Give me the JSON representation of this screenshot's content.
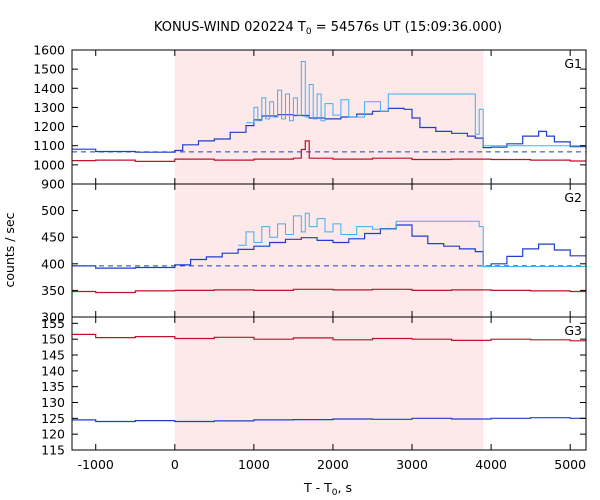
{
  "chart_data": {
    "type": "line",
    "title": "KONUS-WIND 020224 T",
    "title_sub": "0",
    "title_rest": " = 54576s UT (15:09:36.000)",
    "xlabel": "T - T",
    "xlabel_sub": "0",
    "xlabel_rest": ", s",
    "ylabel": "counts / sec",
    "xlim": [
      -1300,
      5200
    ],
    "xticks": [
      -1000,
      0,
      1000,
      2000,
      3000,
      4000,
      5000
    ],
    "xtick_labels": [
      "-1000",
      "0",
      "1000",
      "2000",
      "3000",
      "4000",
      "5000"
    ],
    "shaded_interval": [
      0,
      3900
    ],
    "shaded_color": "#fde8ea",
    "colors": {
      "total": "#1f3fc8",
      "hires": "#3fb0f0",
      "hard": "#c0102a",
      "bg": "#1f3fc8"
    },
    "panels": [
      {
        "label": "G1",
        "ylim": [
          900,
          1600
        ],
        "yticks": [
          900,
          1000,
          1100,
          1200,
          1300,
          1400,
          1500,
          1600
        ],
        "ytick_labels": [
          "900",
          "1000",
          "1100",
          "1200",
          "1300",
          "1400",
          "1500",
          "1600"
        ],
        "background_level": 1068,
        "series": [
          {
            "role": "total",
            "x": [
              -1300,
              -1000,
              -500,
              0,
              100,
              300,
              500,
              700,
              900,
              1000,
              1100,
              1300,
              1500,
              1700,
              1900,
              2100,
              2300,
              2500,
              2700,
              2900,
              3000,
              3100,
              3300,
              3500,
              3700,
              3800,
              3900,
              4000,
              4200,
              4400,
              4600,
              4700,
              4800,
              5000,
              5200
            ],
            "y": [
              1082,
              1070,
              1066,
              1075,
              1105,
              1125,
              1135,
              1170,
              1205,
              1235,
              1255,
              1262,
              1258,
              1245,
              1240,
              1250,
              1265,
              1280,
              1295,
              1290,
              1245,
              1195,
              1175,
              1165,
              1150,
              1140,
              1090,
              1092,
              1110,
              1150,
              1175,
              1150,
              1120,
              1095,
              1090
            ]
          },
          {
            "role": "hires",
            "x": [
              900,
              1000,
              1050,
              1100,
              1150,
              1200,
              1250,
              1300,
              1350,
              1400,
              1450,
              1500,
              1550,
              1600,
              1650,
              1700,
              1750,
              1800,
              1850,
              1900,
              2000,
              2100,
              2200,
              2400,
              2600,
              2700,
              3800,
              3850,
              3900
            ],
            "y": [
              1220,
              1300,
              1230,
              1350,
              1240,
              1330,
              1250,
              1390,
              1240,
              1370,
              1230,
              1350,
              1260,
              1540,
              1250,
              1420,
              1240,
              1370,
              1230,
              1320,
              1260,
              1340,
              1250,
              1330,
              1280,
              1370,
              1160,
              1290,
              1100
            ]
          },
          {
            "role": "hard",
            "x": [
              -1300,
              -1000,
              -500,
              0,
              500,
              1000,
              1500,
              1600,
              1650,
              1700,
              2000,
              2500,
              3000,
              3500,
              4000,
              4500,
              5000,
              5200
            ],
            "y": [
              1022,
              1025,
              1018,
              1030,
              1025,
              1030,
              1035,
              1080,
              1125,
              1035,
              1030,
              1035,
              1028,
              1030,
              1028,
              1025,
              1020,
              1018
            ]
          }
        ]
      },
      {
        "label": "G2",
        "ylim": [
          300,
          550
        ],
        "yticks": [
          300,
          350,
          400,
          450,
          500
        ],
        "ytick_labels": [
          "300",
          "350",
          "400",
          "450",
          "500"
        ],
        "background_level": 396,
        "series": [
          {
            "role": "total",
            "x": [
              -1300,
              -1000,
              -500,
              0,
              200,
              400,
              600,
              800,
              1000,
              1200,
              1400,
              1600,
              1800,
              2000,
              2200,
              2400,
              2600,
              2800,
              3000,
              3200,
              3400,
              3600,
              3800,
              3900,
              4000,
              4200,
              4400,
              4600,
              4800,
              5000,
              5200
            ],
            "y": [
              396,
              392,
              393,
              398,
              408,
              413,
              420,
              427,
              433,
              440,
              446,
              449,
              444,
              440,
              447,
              457,
              466,
              473,
              452,
              438,
              433,
              428,
              423,
              395,
              400,
              414,
              428,
              437,
              426,
              415,
              412
            ]
          },
          {
            "role": "hires",
            "x": [
              800,
              900,
              1000,
              1100,
              1200,
              1300,
              1400,
              1500,
              1600,
              1650,
              1700,
              1800,
              1900,
              2000,
              2100,
              2300,
              2500,
              2800,
              3850,
              3900
            ],
            "y": [
              435,
              460,
              440,
              470,
              450,
              475,
              455,
              490,
              460,
              495,
              470,
              485,
              460,
              475,
              455,
              470,
              465,
              480,
              470,
              395
            ]
          },
          {
            "role": "hard",
            "x": [
              -1300,
              -1000,
              -500,
              0,
              500,
              1000,
              1500,
              2000,
              2500,
              3000,
              3500,
              4000,
              4500,
              5000,
              5200
            ],
            "y": [
              348,
              346,
              349,
              350,
              351,
              350,
              352,
              351,
              352,
              350,
              351,
              350,
              349,
              348,
              348
            ]
          }
        ]
      },
      {
        "label": "G3",
        "ylim": [
          115,
          157
        ],
        "yticks": [
          115,
          120,
          125,
          130,
          135,
          140,
          145,
          150,
          155
        ],
        "ytick_labels": [
          "115",
          "120",
          "125",
          "130",
          "135",
          "140",
          "145",
          "150",
          "155"
        ],
        "series": [
          {
            "role": "hard",
            "x": [
              -1300,
              -1000,
              -500,
              0,
              500,
              1000,
              1500,
              2000,
              2500,
              3000,
              3500,
              4000,
              4500,
              5000,
              5200
            ],
            "y": [
              151.5,
              150.5,
              150.8,
              150.2,
              150.6,
              150.0,
              150.4,
              149.8,
              150.2,
              150.0,
              149.6,
              150.0,
              149.8,
              149.5,
              149.5
            ]
          },
          {
            "role": "total",
            "x": [
              -1300,
              -1000,
              -500,
              0,
              500,
              1000,
              1500,
              2000,
              2500,
              3000,
              3500,
              4000,
              4500,
              5000,
              5200
            ],
            "y": [
              124.5,
              124.0,
              124.3,
              124.0,
              124.2,
              124.5,
              124.6,
              124.8,
              124.7,
              125.0,
              124.8,
              125.0,
              125.2,
              125.0,
              125.0
            ]
          }
        ]
      }
    ]
  }
}
